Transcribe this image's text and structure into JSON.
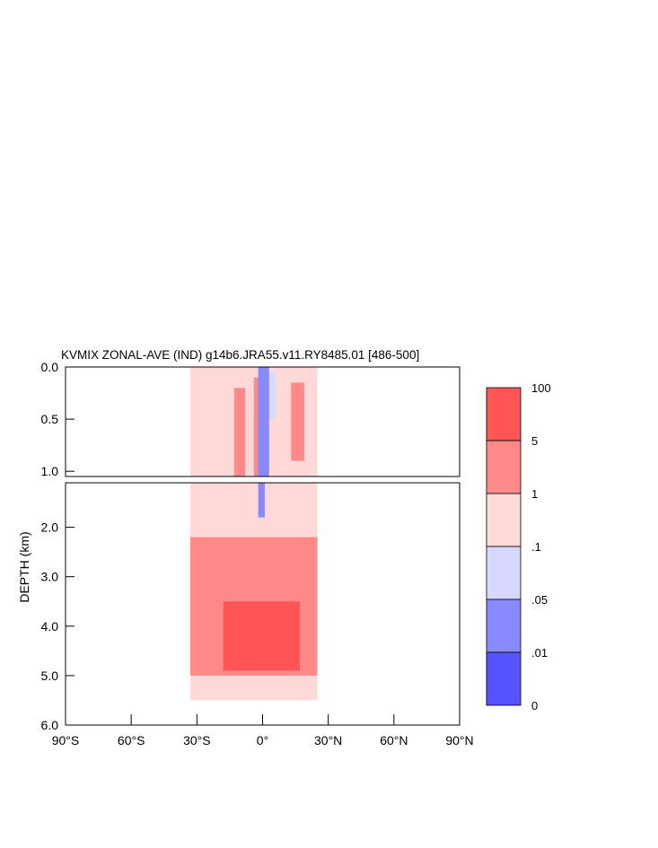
{
  "chart_data": {
    "type": "heatmap",
    "title": "KVMIX ZONAL-AVE (IND) g14b6.JRA55.v11.RY8485.01 [486-500]",
    "ylabel": "DEPTH (km)",
    "upper_panel": {
      "ylim": [
        0.0,
        1.05
      ],
      "yticks": [
        "0.0",
        "0.5",
        "1.0"
      ],
      "ytick_values": [
        0.0,
        0.5,
        1.0
      ]
    },
    "lower_panel": {
      "ylim": [
        1.1,
        6.0
      ],
      "yticks": [
        "2.0",
        "3.0",
        "4.0",
        "5.0",
        "6.0"
      ],
      "ytick_values": [
        2.0,
        3.0,
        4.0,
        5.0,
        6.0
      ]
    },
    "xlim": [
      -90,
      90
    ],
    "xticks": [
      "90°S",
      "60°S",
      "30°S",
      "0°",
      "30°N",
      "60°N",
      "90°N"
    ],
    "xtick_values": [
      -90,
      -60,
      -30,
      0,
      30,
      60,
      90
    ],
    "colorbar": {
      "labels": [
        "100",
        "5",
        "1",
        ".1",
        ".05",
        ".01",
        "0"
      ],
      "colors": [
        "#ff5555",
        "#ff8888",
        "#ffd8d8",
        "#d8d8ff",
        "#8888ff",
        "#5555ff"
      ]
    },
    "regions": [
      {
        "level": 2,
        "lat": [
          -33,
          25
        ],
        "depth": [
          0.0,
          1.05
        ]
      },
      {
        "level": 1,
        "lat": [
          -13,
          -8
        ],
        "depth": [
          0.2,
          1.05
        ]
      },
      {
        "level": 1,
        "lat": [
          -4,
          -1
        ],
        "depth": [
          0.1,
          1.05
        ]
      },
      {
        "level": 1,
        "lat": [
          13,
          19
        ],
        "depth": [
          0.15,
          0.9
        ]
      },
      {
        "level": 4,
        "lat": [
          -2,
          3
        ],
        "depth": [
          0.0,
          1.05
        ]
      },
      {
        "level": 3,
        "lat": [
          3,
          6
        ],
        "depth": [
          0.05,
          0.5
        ]
      },
      {
        "level": 2,
        "lat": [
          -33,
          25
        ],
        "depth": [
          1.1,
          5.5
        ]
      },
      {
        "level": 1,
        "lat": [
          -33,
          25
        ],
        "depth": [
          2.2,
          5.0
        ]
      },
      {
        "level": 0,
        "lat": [
          -18,
          17
        ],
        "depth": [
          3.5,
          4.9
        ]
      },
      {
        "level": 4,
        "lat": [
          -2,
          1
        ],
        "depth": [
          1.1,
          1.8
        ]
      }
    ]
  }
}
